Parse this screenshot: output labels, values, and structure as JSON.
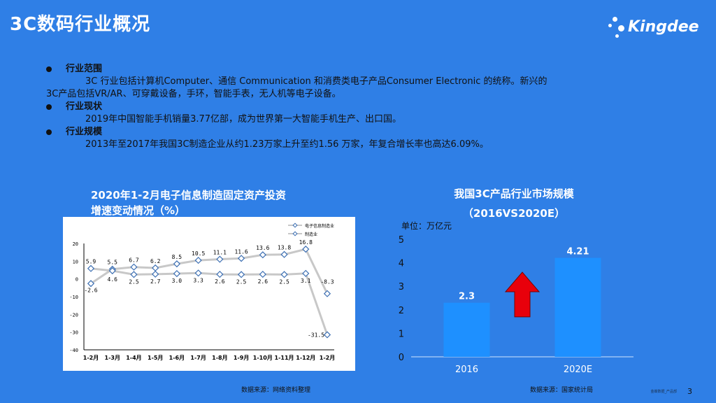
{
  "title": "3C数码行业概况",
  "logo": {
    "text": "Kingdee"
  },
  "bullets": [
    {
      "head": "行业范围",
      "text1": "3C 行业包括计算机Computer、通信 Communication 和消费类电子产品Consumer Electronic 的统称。新兴的",
      "text2": "3C产品包括VR/AR、可穿戴设备，手环，智能手表，无人机等电子设备。"
    },
    {
      "head": "行业现状",
      "text1": "2019年中国智能手机销量3.77亿部，成为世界第一大智能手机生产、出口国。"
    },
    {
      "head": "行业规模",
      "text1": "2013年至2017年我国3C制造企业从约1.23万家上升至约1.56 万家，年复合增长率也高达6.09%。"
    }
  ],
  "chart_data": [
    {
      "type": "line",
      "title": "2020年1-2月电子信息制造固定资产投资",
      "title2": "增速变动情况（%）",
      "categories": [
        "1-2月",
        "1-3月",
        "1-4月",
        "1-5月",
        "1-6月",
        "1-7月",
        "1-8月",
        "1-9月",
        "1-10月",
        "1-11月",
        "1-12月",
        "1-2月"
      ],
      "ylim": [
        -40,
        20
      ],
      "yticks": [
        "20",
        "10",
        "0",
        "-10",
        "-20",
        "-30",
        "-40"
      ],
      "legend_position": "top-right",
      "series": [
        {
          "name": "电子信息制造业",
          "values": [
            -2.6,
            5.5,
            6.7,
            6.2,
            8.5,
            10.5,
            11.1,
            11.6,
            13.6,
            13.8,
            16.8,
            -8.3
          ],
          "labels": [
            "-2.6",
            "5.5",
            "6.7",
            "6.2",
            "8.5",
            "10.5",
            "11.1",
            "11.6",
            "13.6",
            "13.8",
            "16.8",
            "-8.3"
          ]
        },
        {
          "name": "制造业",
          "values": [
            5.9,
            4.6,
            2.5,
            2.7,
            3.0,
            3.3,
            2.6,
            2.5,
            2.6,
            2.5,
            3.1,
            -31.5
          ],
          "labels": [
            "5.9",
            "4.6",
            "2.5",
            "2.7",
            "3.0",
            "3.3",
            "2.6",
            "2.5",
            "2.6",
            "2.5",
            "3.1",
            "-31.5"
          ]
        }
      ],
      "colors": {
        "line": "#c8c8c8",
        "marker": "#3c6fb3"
      }
    },
    {
      "type": "bar",
      "title": "我国3C产品行业市场规模",
      "subtitle": "（2016VS2020E）",
      "unit": "单位：万亿元",
      "categories": [
        "2016",
        "2020E"
      ],
      "values": [
        2.3,
        4.21
      ],
      "value_labels": [
        "2.3",
        "4.21"
      ],
      "ylim": [
        0,
        5
      ],
      "yticks": [
        "0",
        "1",
        "2",
        "3",
        "4",
        "5"
      ],
      "colors": {
        "bar": "#1e90ff",
        "arrow": "#e8000b"
      }
    }
  ],
  "sources": {
    "left": "数据来源：网络资料整理",
    "right": "数据来源：国家统计局"
  },
  "page_number": "3",
  "footer_small": "金蝶数据_产品部",
  "colors": {
    "background": "#2f7fe6"
  }
}
